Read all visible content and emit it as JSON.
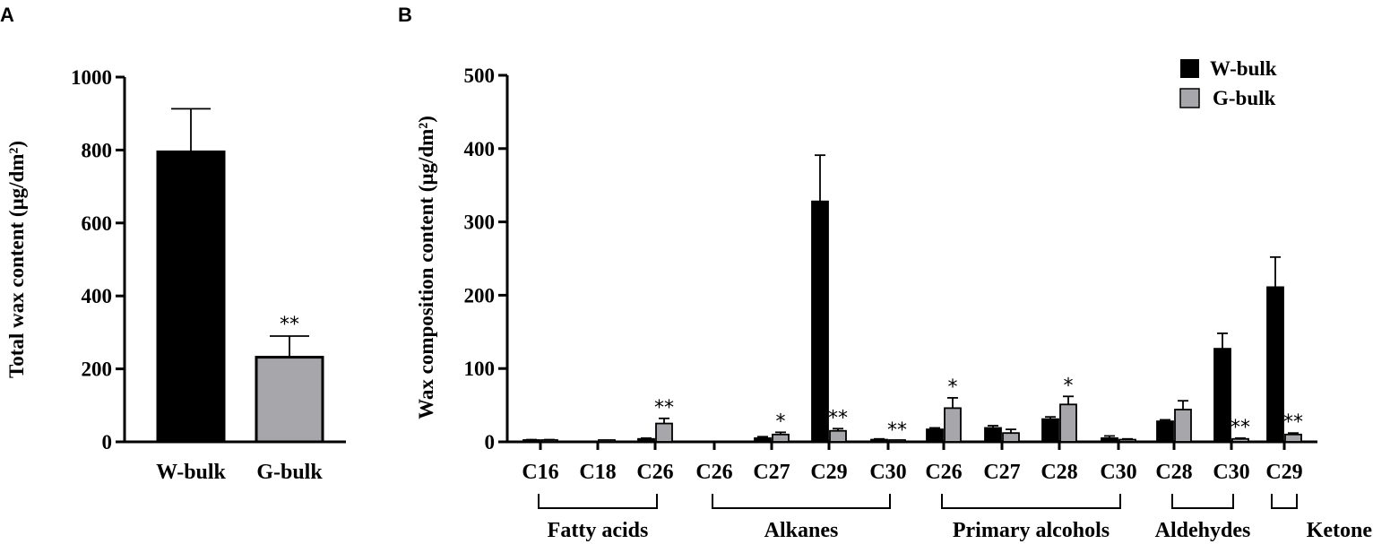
{
  "colors": {
    "w_bulk": "#000000",
    "g_bulk": "#a6a6ab",
    "axis": "#000000"
  },
  "chart_data": [
    {
      "panel": "A",
      "type": "bar",
      "categories": [
        "W-bulk",
        "G-bulk"
      ],
      "values": [
        795,
        232
      ],
      "errors": [
        118,
        58
      ],
      "significance": [
        "",
        "**"
      ],
      "ylabel": "Total wax content (μg/dm²)",
      "ylim": [
        0,
        1000
      ],
      "yticks": [
        0,
        200,
        400,
        600,
        800,
        1000
      ],
      "grid": false
    },
    {
      "panel": "B",
      "type": "bar",
      "categories": [
        "C16",
        "C18",
        "C26",
        "C26",
        "C27",
        "C29",
        "C30",
        "C26",
        "C27",
        "C28",
        "C30",
        "C28",
        "C30",
        "C29"
      ],
      "groups": [
        {
          "label": "Fatty acids",
          "from": 0,
          "to": 2
        },
        {
          "label": "Alkanes",
          "from": 3,
          "to": 6
        },
        {
          "label": "Primary alcohols",
          "from": 7,
          "to": 10
        },
        {
          "label": "Aldehydes",
          "from": 11,
          "to": 12
        },
        {
          "label": "Ketone",
          "from": 13,
          "to": 13
        }
      ],
      "series": [
        {
          "name": "W-bulk",
          "values": [
            2,
            0,
            4,
            0,
            5,
            328,
            3,
            17,
            19,
            31,
            5,
            28,
            127,
            211
          ],
          "errors": [
            1,
            0,
            1,
            0,
            2,
            63,
            1,
            2,
            3,
            3,
            3,
            2,
            21,
            41
          ],
          "significance": [
            "",
            "",
            "",
            "",
            "",
            "",
            "",
            "",
            "",
            "",
            "",
            "",
            "",
            ""
          ]
        },
        {
          "name": "G-bulk",
          "values": [
            2,
            1,
            25,
            0,
            10,
            15,
            1,
            46,
            12,
            51,
            3,
            44,
            4,
            10
          ],
          "errors": [
            1,
            0,
            7,
            0,
            3,
            3,
            0,
            14,
            5,
            11,
            1,
            12,
            1,
            2
          ],
          "significance": [
            "",
            "",
            "**",
            "",
            "*",
            "**",
            "**",
            "*",
            "",
            "*",
            "",
            "",
            "**",
            "**"
          ]
        }
      ],
      "ylabel": "Wax composition content (μg/dm²)",
      "ylim": [
        0,
        500
      ],
      "yticks": [
        0,
        100,
        200,
        300,
        400,
        500
      ],
      "legend": {
        "position": "top-right",
        "entries": [
          "W-bulk",
          "G-bulk"
        ]
      },
      "grid": false
    }
  ]
}
